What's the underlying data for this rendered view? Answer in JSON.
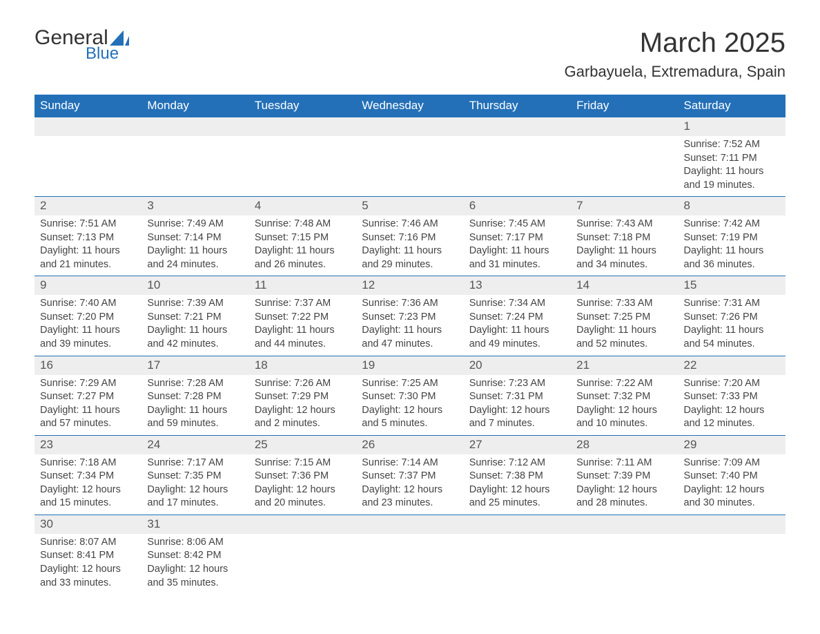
{
  "logo": {
    "word1": "General",
    "word2": "Blue",
    "word1_color": "#333333",
    "word2_color": "#2370b8",
    "sail_color": "#2370b8"
  },
  "title": "March 2025",
  "location": "Garbayuela, Extremadura, Spain",
  "colors": {
    "header_bg": "#2370b8",
    "header_text": "#ffffff",
    "daynum_bg": "#eeeeee",
    "border": "#2370b8",
    "text": "#333333"
  },
  "weekdays": [
    "Sunday",
    "Monday",
    "Tuesday",
    "Wednesday",
    "Thursday",
    "Friday",
    "Saturday"
  ],
  "weeks": [
    [
      null,
      null,
      null,
      null,
      null,
      null,
      {
        "n": "1",
        "sunrise": "Sunrise: 7:52 AM",
        "sunset": "Sunset: 7:11 PM",
        "day1": "Daylight: 11 hours",
        "day2": "and 19 minutes."
      }
    ],
    [
      {
        "n": "2",
        "sunrise": "Sunrise: 7:51 AM",
        "sunset": "Sunset: 7:13 PM",
        "day1": "Daylight: 11 hours",
        "day2": "and 21 minutes."
      },
      {
        "n": "3",
        "sunrise": "Sunrise: 7:49 AM",
        "sunset": "Sunset: 7:14 PM",
        "day1": "Daylight: 11 hours",
        "day2": "and 24 minutes."
      },
      {
        "n": "4",
        "sunrise": "Sunrise: 7:48 AM",
        "sunset": "Sunset: 7:15 PM",
        "day1": "Daylight: 11 hours",
        "day2": "and 26 minutes."
      },
      {
        "n": "5",
        "sunrise": "Sunrise: 7:46 AM",
        "sunset": "Sunset: 7:16 PM",
        "day1": "Daylight: 11 hours",
        "day2": "and 29 minutes."
      },
      {
        "n": "6",
        "sunrise": "Sunrise: 7:45 AM",
        "sunset": "Sunset: 7:17 PM",
        "day1": "Daylight: 11 hours",
        "day2": "and 31 minutes."
      },
      {
        "n": "7",
        "sunrise": "Sunrise: 7:43 AM",
        "sunset": "Sunset: 7:18 PM",
        "day1": "Daylight: 11 hours",
        "day2": "and 34 minutes."
      },
      {
        "n": "8",
        "sunrise": "Sunrise: 7:42 AM",
        "sunset": "Sunset: 7:19 PM",
        "day1": "Daylight: 11 hours",
        "day2": "and 36 minutes."
      }
    ],
    [
      {
        "n": "9",
        "sunrise": "Sunrise: 7:40 AM",
        "sunset": "Sunset: 7:20 PM",
        "day1": "Daylight: 11 hours",
        "day2": "and 39 minutes."
      },
      {
        "n": "10",
        "sunrise": "Sunrise: 7:39 AM",
        "sunset": "Sunset: 7:21 PM",
        "day1": "Daylight: 11 hours",
        "day2": "and 42 minutes."
      },
      {
        "n": "11",
        "sunrise": "Sunrise: 7:37 AM",
        "sunset": "Sunset: 7:22 PM",
        "day1": "Daylight: 11 hours",
        "day2": "and 44 minutes."
      },
      {
        "n": "12",
        "sunrise": "Sunrise: 7:36 AM",
        "sunset": "Sunset: 7:23 PM",
        "day1": "Daylight: 11 hours",
        "day2": "and 47 minutes."
      },
      {
        "n": "13",
        "sunrise": "Sunrise: 7:34 AM",
        "sunset": "Sunset: 7:24 PM",
        "day1": "Daylight: 11 hours",
        "day2": "and 49 minutes."
      },
      {
        "n": "14",
        "sunrise": "Sunrise: 7:33 AM",
        "sunset": "Sunset: 7:25 PM",
        "day1": "Daylight: 11 hours",
        "day2": "and 52 minutes."
      },
      {
        "n": "15",
        "sunrise": "Sunrise: 7:31 AM",
        "sunset": "Sunset: 7:26 PM",
        "day1": "Daylight: 11 hours",
        "day2": "and 54 minutes."
      }
    ],
    [
      {
        "n": "16",
        "sunrise": "Sunrise: 7:29 AM",
        "sunset": "Sunset: 7:27 PM",
        "day1": "Daylight: 11 hours",
        "day2": "and 57 minutes."
      },
      {
        "n": "17",
        "sunrise": "Sunrise: 7:28 AM",
        "sunset": "Sunset: 7:28 PM",
        "day1": "Daylight: 11 hours",
        "day2": "and 59 minutes."
      },
      {
        "n": "18",
        "sunrise": "Sunrise: 7:26 AM",
        "sunset": "Sunset: 7:29 PM",
        "day1": "Daylight: 12 hours",
        "day2": "and 2 minutes."
      },
      {
        "n": "19",
        "sunrise": "Sunrise: 7:25 AM",
        "sunset": "Sunset: 7:30 PM",
        "day1": "Daylight: 12 hours",
        "day2": "and 5 minutes."
      },
      {
        "n": "20",
        "sunrise": "Sunrise: 7:23 AM",
        "sunset": "Sunset: 7:31 PM",
        "day1": "Daylight: 12 hours",
        "day2": "and 7 minutes."
      },
      {
        "n": "21",
        "sunrise": "Sunrise: 7:22 AM",
        "sunset": "Sunset: 7:32 PM",
        "day1": "Daylight: 12 hours",
        "day2": "and 10 minutes."
      },
      {
        "n": "22",
        "sunrise": "Sunrise: 7:20 AM",
        "sunset": "Sunset: 7:33 PM",
        "day1": "Daylight: 12 hours",
        "day2": "and 12 minutes."
      }
    ],
    [
      {
        "n": "23",
        "sunrise": "Sunrise: 7:18 AM",
        "sunset": "Sunset: 7:34 PM",
        "day1": "Daylight: 12 hours",
        "day2": "and 15 minutes."
      },
      {
        "n": "24",
        "sunrise": "Sunrise: 7:17 AM",
        "sunset": "Sunset: 7:35 PM",
        "day1": "Daylight: 12 hours",
        "day2": "and 17 minutes."
      },
      {
        "n": "25",
        "sunrise": "Sunrise: 7:15 AM",
        "sunset": "Sunset: 7:36 PM",
        "day1": "Daylight: 12 hours",
        "day2": "and 20 minutes."
      },
      {
        "n": "26",
        "sunrise": "Sunrise: 7:14 AM",
        "sunset": "Sunset: 7:37 PM",
        "day1": "Daylight: 12 hours",
        "day2": "and 23 minutes."
      },
      {
        "n": "27",
        "sunrise": "Sunrise: 7:12 AM",
        "sunset": "Sunset: 7:38 PM",
        "day1": "Daylight: 12 hours",
        "day2": "and 25 minutes."
      },
      {
        "n": "28",
        "sunrise": "Sunrise: 7:11 AM",
        "sunset": "Sunset: 7:39 PM",
        "day1": "Daylight: 12 hours",
        "day2": "and 28 minutes."
      },
      {
        "n": "29",
        "sunrise": "Sunrise: 7:09 AM",
        "sunset": "Sunset: 7:40 PM",
        "day1": "Daylight: 12 hours",
        "day2": "and 30 minutes."
      }
    ],
    [
      {
        "n": "30",
        "sunrise": "Sunrise: 8:07 AM",
        "sunset": "Sunset: 8:41 PM",
        "day1": "Daylight: 12 hours",
        "day2": "and 33 minutes."
      },
      {
        "n": "31",
        "sunrise": "Sunrise: 8:06 AM",
        "sunset": "Sunset: 8:42 PM",
        "day1": "Daylight: 12 hours",
        "day2": "and 35 minutes."
      },
      null,
      null,
      null,
      null,
      null
    ]
  ]
}
